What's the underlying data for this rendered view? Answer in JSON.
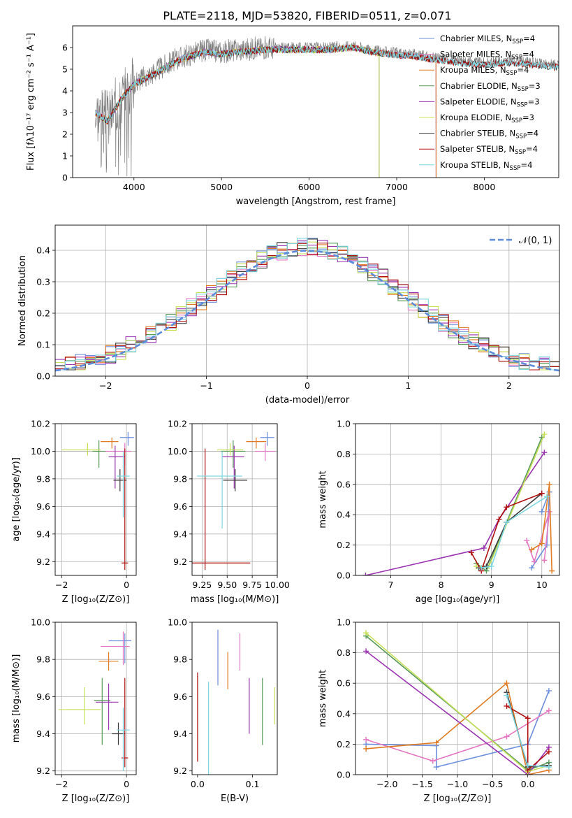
{
  "figure": {
    "title": "PLATE=2118, MJD=53820, FIBERID=0511, z=0.071"
  },
  "chart_data": [
    {
      "id": "spectrum",
      "type": "line",
      "xlabel": "wavelength [Angstrom, rest frame]",
      "ylabel": "Flux [fλ10⁻¹⁷ erg cm⁻² s⁻¹ A⁻¹]",
      "xlim": [
        3300,
        8850
      ],
      "ylim": [
        0,
        7
      ],
      "xticks": [
        4000,
        5000,
        6000,
        7000,
        8000
      ],
      "yticks": [
        0,
        1,
        2,
        3,
        4,
        5,
        6
      ],
      "grid": false,
      "legend_position": "upper right",
      "data_color": "#808080",
      "data_profile": {
        "x": [
          3560,
          3700,
          3850,
          4000,
          4200,
          4500,
          4800,
          5000,
          5200,
          5500,
          5800,
          6200,
          6500,
          6700,
          7000,
          7200,
          7400,
          7700,
          8000,
          8300,
          8800
        ],
        "y": [
          3.1,
          2.7,
          3.7,
          4.4,
          4.8,
          5.5,
          5.9,
          5.8,
          5.9,
          6.0,
          6.0,
          6.0,
          6.1,
          5.9,
          5.75,
          5.7,
          5.55,
          5.4,
          5.3,
          5.4,
          5.2
        ]
      },
      "series": [
        {
          "name": "Chabrier MILES, N<sub>SSP</sub>=4",
          "color": "#6d8fdb",
          "end": 7450
        },
        {
          "name": "Salpeter MILES, N<sub>SSP</sub>=4",
          "color": "#e377c2",
          "end": 7450
        },
        {
          "name": "Kroupa MILES, N<sub>SSP</sub>=4",
          "color": "#e07b24",
          "end": 7450
        },
        {
          "name": "Chabrier ELODIE, N<sub>SSP</sub>=3",
          "color": "#5a9a5a",
          "end": 6800
        },
        {
          "name": "Salpeter ELODIE, N<sub>SSP</sub>=3",
          "color": "#9a35b0",
          "end": 6800
        },
        {
          "name": "Kroupa ELODIE, N<sub>SSP</sub>=3",
          "color": "#c6e05a",
          "end": 6800
        },
        {
          "name": "Chabrier STELIB, N<sub>SSP</sub>=4",
          "color": "#3a3a3a",
          "end": 8850
        },
        {
          "name": "Salpeter STELIB, N<sub>SSP</sub>=4",
          "color": "#b01010",
          "end": 8850
        },
        {
          "name": "Kroupa STELIB, N<sub>SSP</sub>=4",
          "color": "#7fd6e0",
          "end": 8850
        }
      ]
    },
    {
      "id": "residuals",
      "type": "histogram",
      "xlabel": "(data-model)/error",
      "ylabel": "Normed distribution",
      "xlim": [
        -2.5,
        2.5
      ],
      "ylim": [
        0,
        0.48
      ],
      "xticks": [
        -2,
        -1,
        0,
        1,
        2
      ],
      "yticks": [
        0.0,
        0.1,
        0.2,
        0.3,
        0.4
      ],
      "grid": true,
      "bins": 50,
      "legend_position": "upper right",
      "reference": {
        "name": "𝒩(0, 1)",
        "color": "#5b8bd9",
        "mean": 0,
        "sigma": 1
      },
      "series": [
        {
          "color": "#6d8fdb",
          "seed": 1
        },
        {
          "color": "#e377c2",
          "seed": 2
        },
        {
          "color": "#e07b24",
          "seed": 3
        },
        {
          "color": "#5a9a5a",
          "seed": 4
        },
        {
          "color": "#9a35b0",
          "seed": 5
        },
        {
          "color": "#c6e05a",
          "seed": 6
        },
        {
          "color": "#3a3a3a",
          "seed": 7
        },
        {
          "color": "#b01010",
          "seed": 8
        },
        {
          "color": "#7fd6e0",
          "seed": 9
        }
      ]
    },
    {
      "id": "age-vs-z",
      "type": "errorbar",
      "xlabel": "Z [log₁₀(Z/Z⊙)]",
      "ylabel": "age  [log₁₀(age/yr)]",
      "xlim": [
        -2.2,
        0.3
      ],
      "ylim": [
        9.1,
        10.2
      ],
      "xticks": [
        -2,
        0
      ],
      "yticks": [
        9.2,
        9.4,
        9.6,
        9.8,
        10.0,
        10.2
      ],
      "grid": true,
      "points": [
        {
          "color": "#6d8fdb",
          "x": 0.05,
          "xerr": [
            0.25,
            0.18
          ],
          "y": 10.1,
          "yerr": [
            0.06,
            0.04
          ]
        },
        {
          "color": "#e377c2",
          "x": -0.05,
          "xerr": [
            0.6,
            0.2
          ],
          "y": 10.0,
          "yerr": [
            0.1,
            0.06
          ]
        },
        {
          "color": "#e07b24",
          "x": -0.45,
          "xerr": [
            0.35,
            0.2
          ],
          "y": 10.07,
          "yerr": [
            0.05,
            0.03
          ]
        },
        {
          "color": "#5a9a5a",
          "x": -0.85,
          "xerr": [
            0.2,
            0.2
          ],
          "y": 10.0,
          "yerr": [
            0.12,
            0.08
          ]
        },
        {
          "color": "#9a35b0",
          "x": -0.35,
          "xerr": [
            0.2,
            0.3
          ],
          "y": 9.96,
          "yerr": [
            0.23,
            0.08
          ]
        },
        {
          "color": "#c6e05a",
          "x": -1.2,
          "xerr": [
            0.8,
            0.4
          ],
          "y": 10.01,
          "yerr": [
            0.04,
            0.05
          ]
        },
        {
          "color": "#3a3a3a",
          "x": -0.2,
          "xerr": [
            0.2,
            0.2
          ],
          "y": 9.79,
          "yerr": [
            0.08,
            0.08
          ]
        },
        {
          "color": "#b01010",
          "x": -0.05,
          "xerr": [
            0.1,
            0.1
          ],
          "y": 9.19,
          "yerr": [
            0.05,
            0.83
          ]
        },
        {
          "color": "#7fd6e0",
          "x": -0.1,
          "xerr": [
            0.2,
            0.2
          ],
          "y": 9.82,
          "yerr": [
            0.3,
            0.18
          ]
        }
      ]
    },
    {
      "id": "age-vs-mass",
      "type": "errorbar",
      "xlabel": "mass [log₁₀(M/M⊙)]",
      "ylabel": "",
      "xlim": [
        9.15,
        10.0
      ],
      "ylim": [
        9.1,
        10.2
      ],
      "xticks": [
        9.25,
        9.5,
        9.75,
        10.0
      ],
      "yticks": [
        9.2,
        9.4,
        9.6,
        9.8,
        10.0,
        10.2
      ],
      "grid": true,
      "points": [
        {
          "color": "#6d8fdb",
          "x": 9.9,
          "xerr": [
            0.07,
            0.07
          ],
          "y": 10.1,
          "yerr": [
            0.06,
            0.04
          ]
        },
        {
          "color": "#e377c2",
          "x": 9.88,
          "xerr": [
            0.1,
            0.1
          ],
          "y": 10.0,
          "yerr": [
            0.07,
            0.06
          ]
        },
        {
          "color": "#e07b24",
          "x": 9.79,
          "xerr": [
            0.1,
            0.1
          ],
          "y": 10.07,
          "yerr": [
            0.05,
            0.03
          ]
        },
        {
          "color": "#5a9a5a",
          "x": 9.56,
          "xerr": [
            0.12,
            0.12
          ],
          "y": 10.0,
          "yerr": [
            0.12,
            0.08
          ]
        },
        {
          "color": "#9a35b0",
          "x": 9.57,
          "xerr": [
            0.12,
            0.1
          ],
          "y": 9.96,
          "yerr": [
            0.23,
            0.08
          ]
        },
        {
          "color": "#c6e05a",
          "x": 9.53,
          "xerr": [
            0.13,
            0.13
          ],
          "y": 10.01,
          "yerr": [
            0.04,
            0.05
          ]
        },
        {
          "color": "#3a3a3a",
          "x": 9.58,
          "xerr": [
            0.12,
            0.12
          ],
          "y": 9.79,
          "yerr": [
            0.08,
            0.08
          ]
        },
        {
          "color": "#b01010",
          "x": 9.28,
          "xerr": [
            0.2,
            0.45
          ],
          "y": 9.19,
          "yerr": [
            0.05,
            0.83
          ]
        },
        {
          "color": "#7fd6e0",
          "x": 9.45,
          "xerr": [
            0.25,
            0.2
          ],
          "y": 9.82,
          "yerr": [
            0.38,
            0.18
          ]
        }
      ]
    },
    {
      "id": "weight-vs-age",
      "type": "line",
      "xlabel": "age  [log₁₀(age/yr)]",
      "ylabel": "mass weight",
      "xlim": [
        6.3,
        10.35
      ],
      "ylim": [
        0,
        1.0
      ],
      "xticks": [
        7,
        8,
        9,
        10
      ],
      "yticks": [
        0.0,
        0.2,
        0.4,
        0.6,
        0.8,
        1.0
      ],
      "grid": true,
      "series": [
        {
          "color": "#6d8fdb",
          "x": [
            9.8,
            10.1,
            10.15,
            10.0
          ],
          "y": [
            0.05,
            0.2,
            0.55,
            0.42
          ]
        },
        {
          "color": "#e377c2",
          "x": [
            9.7,
            9.85,
            10.15,
            10.05
          ],
          "y": [
            0.23,
            0.09,
            0.42,
            0.1
          ]
        },
        {
          "color": "#e07b24",
          "x": [
            9.8,
            10.0,
            10.15,
            10.2
          ],
          "y": [
            0.17,
            0.21,
            0.6,
            0.03
          ]
        },
        {
          "color": "#5a9a5a",
          "x": [
            8.7,
            8.9,
            10.0
          ],
          "y": [
            0.08,
            0.03,
            0.91
          ]
        },
        {
          "color": "#9a35b0",
          "x": [
            6.5,
            8.85,
            9.15,
            10.05
          ],
          "y": [
            0.0,
            0.18,
            0.37,
            0.81
          ]
        },
        {
          "color": "#c6e05a",
          "x": [
            8.7,
            8.95,
            10.05
          ],
          "y": [
            0.06,
            0.06,
            0.93
          ]
        },
        {
          "color": "#3a3a3a",
          "x": [
            8.75,
            8.9,
            9.3,
            10.0
          ],
          "y": [
            0.05,
            0.06,
            0.35,
            0.54
          ]
        },
        {
          "color": "#b01010",
          "x": [
            8.6,
            8.8,
            9.15,
            9.3,
            10.0
          ],
          "y": [
            0.15,
            0.03,
            0.37,
            0.45,
            0.54
          ]
        },
        {
          "color": "#7fd6e0",
          "x": [
            8.8,
            9.0,
            9.3,
            10.1
          ],
          "y": [
            0.05,
            0.06,
            0.35,
            0.52
          ]
        }
      ]
    },
    {
      "id": "mass-vs-z",
      "type": "errorbar",
      "xlabel": "Z [log₁₀(Z/Z⊙)]",
      "ylabel": "mass [log₁₀(M/M⊙)]",
      "xlim": [
        -2.2,
        0.3
      ],
      "ylim": [
        9.18,
        10.0
      ],
      "xticks": [
        -2,
        0
      ],
      "yticks": [
        9.2,
        9.4,
        9.6,
        9.8,
        10.0
      ],
      "grid": true,
      "points": [
        {
          "color": "#6d8fdb",
          "x": -0.05,
          "xerr": [
            0.5,
            0.2
          ],
          "y": 9.9,
          "yerr": [
            0.12,
            0.04
          ]
        },
        {
          "color": "#e377c2",
          "x": -0.1,
          "xerr": [
            0.7,
            0.2
          ],
          "y": 9.87,
          "yerr": [
            0.1,
            0.08
          ]
        },
        {
          "color": "#e07b24",
          "x": -0.55,
          "xerr": [
            0.3,
            0.3
          ],
          "y": 9.79,
          "yerr": [
            0.05,
            0.05
          ]
        },
        {
          "color": "#5a9a5a",
          "x": -0.75,
          "xerr": [
            0.25,
            0.25
          ],
          "y": 9.58,
          "yerr": [
            0.24,
            0.12
          ]
        },
        {
          "color": "#9a35b0",
          "x": -0.55,
          "xerr": [
            0.4,
            0.3
          ],
          "y": 9.57,
          "yerr": [
            0.15,
            0.1
          ]
        },
        {
          "color": "#c6e05a",
          "x": -1.3,
          "xerr": [
            0.8,
            0.5
          ],
          "y": 9.53,
          "yerr": [
            0.08,
            0.12
          ]
        },
        {
          "color": "#3a3a3a",
          "x": -0.25,
          "xerr": [
            0.2,
            0.2
          ],
          "y": 9.4,
          "yerr": [
            0.06,
            0.06
          ]
        },
        {
          "color": "#b01010",
          "x": -0.05,
          "xerr": [
            0.1,
            0.1
          ],
          "y": 9.27,
          "yerr": [
            0.05,
            0.43
          ]
        },
        {
          "color": "#7fd6e0",
          "x": -0.1,
          "xerr": [
            0.2,
            0.2
          ],
          "y": 9.42,
          "yerr": [
            0.22,
            0.12
          ]
        }
      ]
    },
    {
      "id": "mass-vs-ebv",
      "type": "errorbar",
      "xlabel": "E(B-V)",
      "ylabel": "",
      "xlim": [
        -0.01,
        0.145
      ],
      "ylim": [
        9.18,
        10.0
      ],
      "xticks": [
        0.0,
        0.1
      ],
      "yticks": [
        9.2,
        9.4,
        9.6,
        9.8,
        10.0
      ],
      "grid": false,
      "points": [
        {
          "color": "#b01010",
          "x": 0.0,
          "xerr": [
            0,
            0
          ],
          "y": 9.49,
          "yerr": [
            0.24,
            0.24
          ]
        },
        {
          "color": "#7fd6e0",
          "x": 0.02,
          "xerr": [
            0,
            0
          ],
          "y": 9.43,
          "yerr": [
            0.25,
            0.25
          ]
        },
        {
          "color": "#6d8fdb",
          "x": 0.037,
          "xerr": [
            0,
            0
          ],
          "y": 9.81,
          "yerr": [
            0.15,
            0.15
          ]
        },
        {
          "color": "#e07b24",
          "x": 0.055,
          "xerr": [
            0,
            0
          ],
          "y": 9.74,
          "yerr": [
            0.1,
            0.1
          ]
        },
        {
          "color": "#e377c2",
          "x": 0.077,
          "xerr": [
            0,
            0
          ],
          "y": 9.84,
          "yerr": [
            0.1,
            0.1
          ]
        },
        {
          "color": "#9a35b0",
          "x": 0.094,
          "xerr": [
            0,
            0
          ],
          "y": 9.55,
          "yerr": [
            0.15,
            0.15
          ]
        },
        {
          "color": "#5a9a5a",
          "x": 0.118,
          "xerr": [
            0,
            0
          ],
          "y": 9.52,
          "yerr": [
            0.18,
            0.18
          ]
        },
        {
          "color": "#c6e05a",
          "x": 0.14,
          "xerr": [
            0,
            0
          ],
          "y": 9.55,
          "yerr": [
            0.1,
            0.1
          ]
        }
      ]
    },
    {
      "id": "weight-vs-z",
      "type": "line",
      "xlabel": "Z [log₁₀(Z/Z⊙)]",
      "ylabel": "mass weight",
      "xlim": [
        -2.45,
        0.45
      ],
      "ylim": [
        0,
        1.0
      ],
      "xticks": [
        -2.0,
        -1.5,
        -1.0,
        -0.5,
        0.0
      ],
      "yticks": [
        0.0,
        0.2,
        0.4,
        0.6,
        0.8,
        1.0
      ],
      "grid": true,
      "series": [
        {
          "color": "#6d8fdb",
          "x": [
            -2.3,
            -1.3,
            -1.3,
            0.0,
            0.3
          ],
          "y": [
            0.2,
            0.19,
            0.05,
            0.2,
            0.55
          ]
        },
        {
          "color": "#e377c2",
          "x": [
            -2.3,
            -1.35,
            -0.3,
            0.3
          ],
          "y": [
            0.23,
            0.09,
            0.25,
            0.42
          ]
        },
        {
          "color": "#e07b24",
          "x": [
            -2.3,
            -1.3,
            -0.3,
            0.0,
            0.3
          ],
          "y": [
            0.17,
            0.21,
            0.6,
            0.0,
            0.03
          ]
        },
        {
          "color": "#5a9a5a",
          "x": [
            -2.3,
            0.0,
            0.3
          ],
          "y": [
            0.91,
            0.03,
            0.08
          ]
        },
        {
          "color": "#9a35b0",
          "x": [
            -2.3,
            0.0,
            0.3
          ],
          "y": [
            0.81,
            0.0,
            0.18
          ]
        },
        {
          "color": "#c6e05a",
          "x": [
            -2.3,
            0.0,
            0.3
          ],
          "y": [
            0.93,
            0.02,
            0.06
          ]
        },
        {
          "color": "#3a3a3a",
          "x": [
            -0.3,
            0.0,
            0.3
          ],
          "y": [
            0.54,
            0.05,
            0.06
          ]
        },
        {
          "color": "#b01010",
          "x": [
            -0.3,
            0.0,
            0.0,
            0.3
          ],
          "y": [
            0.45,
            0.37,
            0.03,
            0.15
          ]
        },
        {
          "color": "#7fd6e0",
          "x": [
            -0.3,
            0.0,
            0.3
          ],
          "y": [
            0.52,
            0.06,
            0.05
          ]
        }
      ]
    }
  ]
}
